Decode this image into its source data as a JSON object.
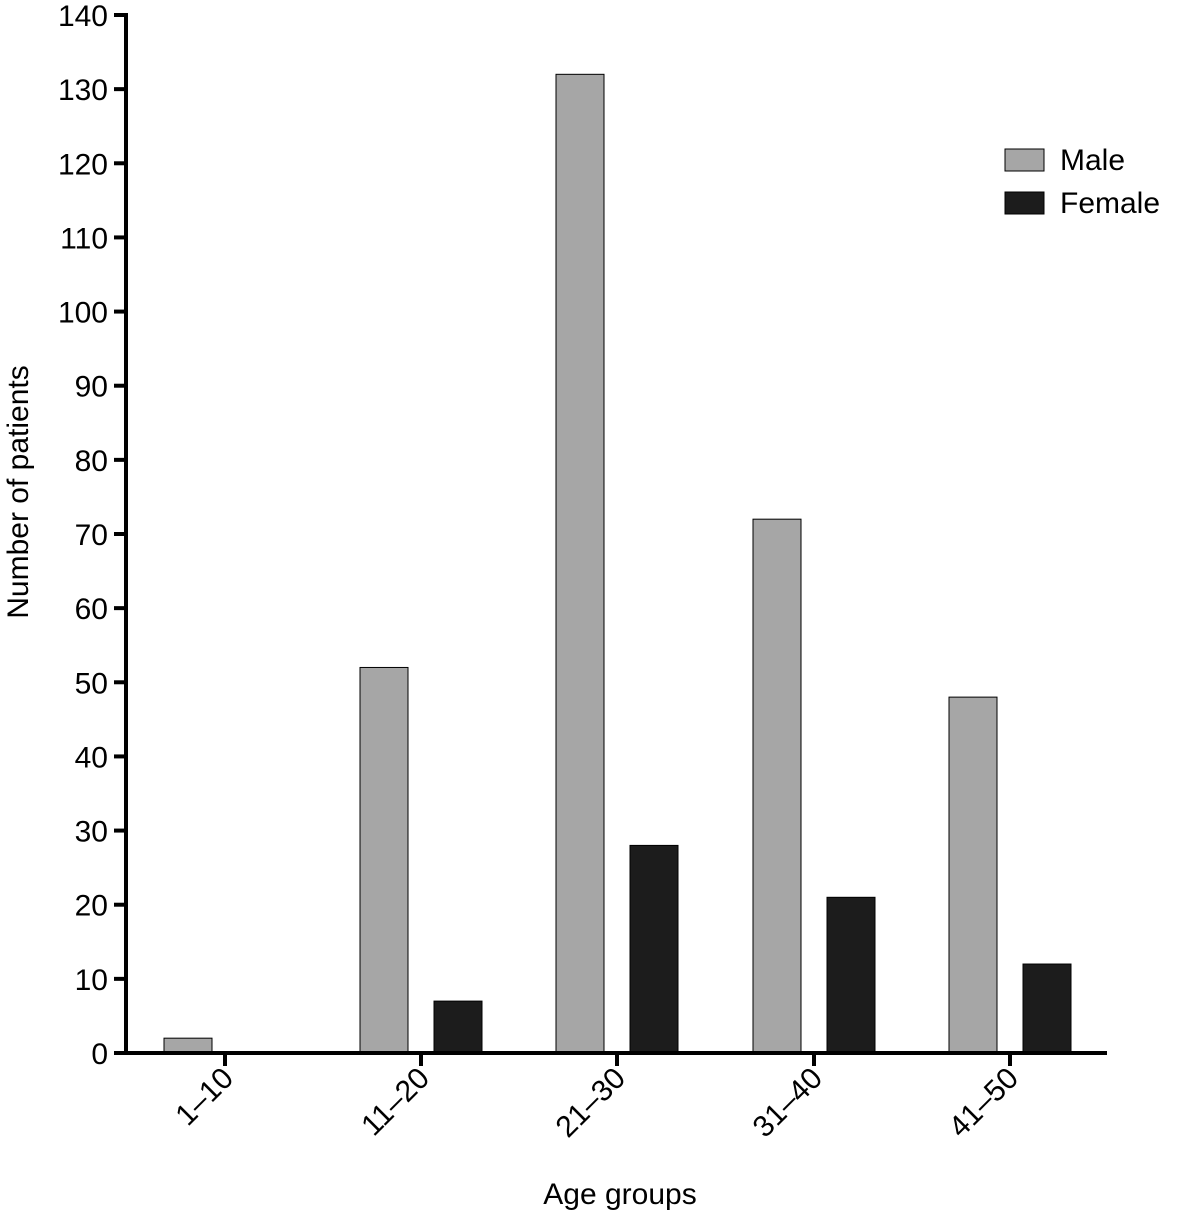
{
  "chart_data": {
    "type": "bar",
    "categories": [
      "1–10",
      "11–20",
      "21–30",
      "31–40",
      "41–50"
    ],
    "series": [
      {
        "name": "Male",
        "color": "#a6a6a6",
        "values": [
          2,
          52,
          132,
          72,
          48
        ]
      },
      {
        "name": "Female",
        "color": "#1c1c1c",
        "values": [
          0,
          7,
          28,
          21,
          12
        ]
      }
    ],
    "xlabel": "Age groups",
    "ylabel": "Number of patients",
    "ylim": [
      0,
      140
    ],
    "yticks": [
      "0",
      "10",
      "20",
      "30",
      "40",
      "50",
      "60",
      "70",
      "80",
      "90",
      "100",
      "110",
      "120",
      "130",
      "140"
    ],
    "grid": false,
    "legend_position": "top-right"
  }
}
